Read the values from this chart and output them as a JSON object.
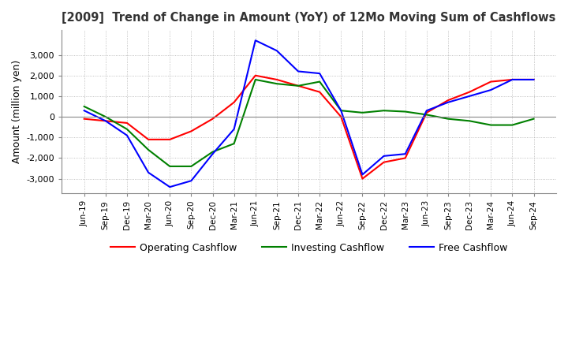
{
  "title": "[2009]  Trend of Change in Amount (YoY) of 12Mo Moving Sum of Cashflows",
  "ylabel": "Amount (million yen)",
  "ylim": [
    -3700,
    4200
  ],
  "yticks": [
    -3000,
    -2000,
    -1000,
    0,
    1000,
    2000,
    3000
  ],
  "x_labels": [
    "Jun-19",
    "Sep-19",
    "Dec-19",
    "Mar-20",
    "Jun-20",
    "Sep-20",
    "Dec-20",
    "Mar-21",
    "Jun-21",
    "Sep-21",
    "Dec-21",
    "Mar-22",
    "Jun-22",
    "Sep-22",
    "Dec-22",
    "Mar-23",
    "Jun-23",
    "Sep-23",
    "Dec-23",
    "Mar-24",
    "Jun-24",
    "Sep-24"
  ],
  "operating": [
    -100,
    -200,
    -300,
    -1100,
    -1100,
    -700,
    -100,
    700,
    2000,
    1800,
    1500,
    1200,
    0,
    -3000,
    -2200,
    -2000,
    200,
    800,
    1200,
    1700,
    1800,
    1800
  ],
  "investing": [
    500,
    0,
    -600,
    -1600,
    -2400,
    -2400,
    -1700,
    -1300,
    1800,
    1600,
    1500,
    1700,
    300,
    200,
    300,
    250,
    100,
    -100,
    -200,
    -400,
    -400,
    -100
  ],
  "free": [
    300,
    -200,
    -900,
    -2700,
    -3400,
    -3100,
    -1800,
    -600,
    3700,
    3200,
    2200,
    2100,
    300,
    -2800,
    -1900,
    -1800,
    300,
    700,
    1000,
    1300,
    1800,
    1800
  ],
  "operating_color": "#ff0000",
  "investing_color": "#008000",
  "free_color": "#0000ff",
  "background_color": "#ffffff",
  "grid_color": "#b0b0b0"
}
